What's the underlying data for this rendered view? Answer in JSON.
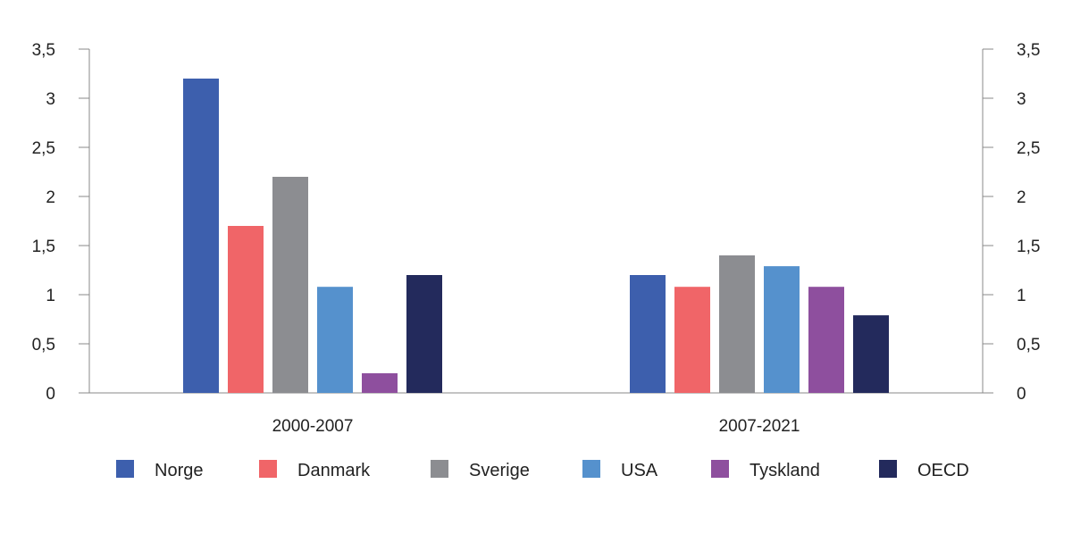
{
  "chart_data": {
    "type": "bar",
    "title": "",
    "xlabel": "",
    "ylabel": "",
    "ylim": [
      0,
      3.5
    ],
    "yticks": [
      "0",
      "0,5",
      "1",
      "1,5",
      "2",
      "2,5",
      "3",
      "3,5"
    ],
    "ytick_values": [
      0,
      0.5,
      1,
      1.5,
      2,
      2.5,
      3,
      3.5
    ],
    "grid": false,
    "legend_position": "bottom",
    "categories": [
      "2000-2007",
      "2007-2021"
    ],
    "series": [
      {
        "name": "Norge",
        "color": "#3d5fad",
        "values": [
          3.2,
          1.2
        ]
      },
      {
        "name": "Danmark",
        "color": "#f06568",
        "values": [
          1.7,
          1.08
        ]
      },
      {
        "name": "Sverige",
        "color": "#8c8d91",
        "values": [
          2.2,
          1.4
        ]
      },
      {
        "name": "USA",
        "color": "#5591cd",
        "values": [
          1.08,
          1.29
        ]
      },
      {
        "name": "Tyskland",
        "color": "#8e4f9e",
        "values": [
          0.2,
          1.08
        ]
      },
      {
        "name": "OECD",
        "color": "#232a5c",
        "values": [
          1.2,
          0.79
        ]
      }
    ]
  }
}
